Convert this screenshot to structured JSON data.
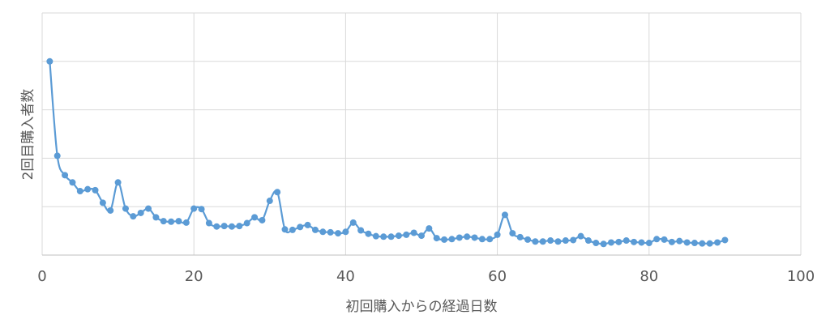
{
  "chart_data": {
    "type": "line",
    "title": "",
    "xlabel": "初回購入からの経過日数",
    "ylabel": "2回目購入者数",
    "xlim": [
      0,
      100
    ],
    "ylim": [
      0,
      5
    ],
    "xticks": [
      0,
      20,
      40,
      60,
      80,
      100
    ],
    "y_tick_labels_visible": false,
    "grid": true,
    "legend": "none",
    "series_color": "#5B9BD5",
    "x": [
      1,
      2,
      3,
      4,
      5,
      6,
      7,
      8,
      9,
      10,
      11,
      12,
      13,
      14,
      15,
      16,
      17,
      18,
      19,
      20,
      21,
      22,
      23,
      24,
      25,
      26,
      27,
      28,
      29,
      30,
      31,
      32,
      33,
      34,
      35,
      36,
      37,
      38,
      39,
      40,
      41,
      42,
      43,
      44,
      45,
      46,
      47,
      48,
      49,
      50,
      51,
      52,
      53,
      54,
      55,
      56,
      57,
      58,
      59,
      60,
      61,
      62,
      63,
      64,
      65,
      66,
      67,
      68,
      69,
      70,
      71,
      72,
      73,
      74,
      75,
      76,
      77,
      78,
      79,
      80,
      81,
      82,
      83,
      84,
      85,
      86,
      87,
      88,
      89,
      90
    ],
    "y": [
      4.0,
      2.05,
      1.65,
      1.5,
      1.32,
      1.36,
      1.34,
      1.08,
      0.92,
      1.5,
      0.96,
      0.8,
      0.87,
      0.96,
      0.78,
      0.7,
      0.69,
      0.7,
      0.67,
      0.96,
      0.95,
      0.66,
      0.59,
      0.6,
      0.59,
      0.6,
      0.66,
      0.78,
      0.72,
      1.12,
      1.3,
      0.53,
      0.52,
      0.58,
      0.62,
      0.52,
      0.48,
      0.47,
      0.45,
      0.48,
      0.67,
      0.51,
      0.44,
      0.39,
      0.38,
      0.38,
      0.4,
      0.42,
      0.46,
      0.4,
      0.55,
      0.35,
      0.32,
      0.33,
      0.36,
      0.38,
      0.36,
      0.33,
      0.33,
      0.42,
      0.83,
      0.45,
      0.37,
      0.32,
      0.28,
      0.28,
      0.3,
      0.28,
      0.3,
      0.31,
      0.39,
      0.3,
      0.25,
      0.23,
      0.26,
      0.27,
      0.3,
      0.27,
      0.26,
      0.25,
      0.33,
      0.32,
      0.27,
      0.29,
      0.26,
      0.25,
      0.24,
      0.24,
      0.26,
      0.31
    ]
  }
}
